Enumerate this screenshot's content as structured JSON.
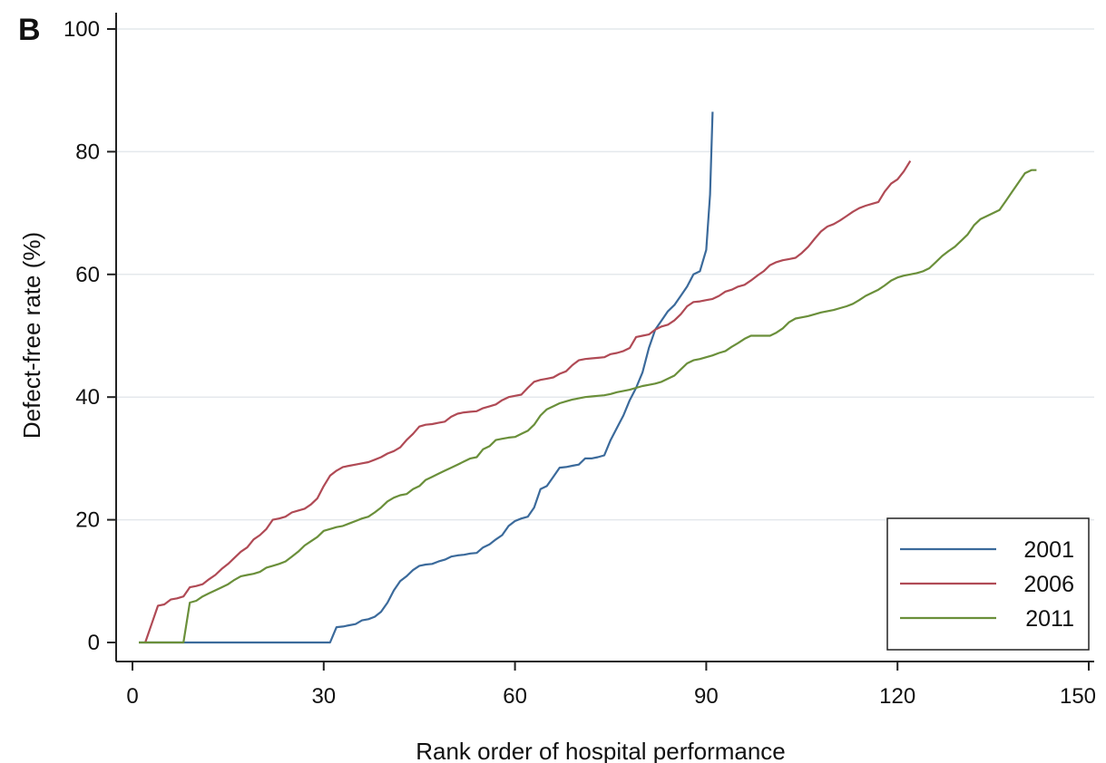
{
  "chart_data": {
    "type": "line",
    "panel_label": "B",
    "xlabel": "Rank order of hospital performance",
    "ylabel": "Defect-free rate (%)",
    "xlim": [
      0,
      150
    ],
    "ylim": [
      0,
      100
    ],
    "x_ticks": [
      0,
      30,
      60,
      90,
      120,
      150
    ],
    "x_tick_labels": [
      "0",
      "30",
      "60",
      "90",
      "120",
      "150"
    ],
    "y_ticks": [
      0,
      20,
      40,
      60,
      80,
      100
    ],
    "y_tick_labels": [
      "0",
      "20",
      "40",
      "60",
      "80",
      "100"
    ],
    "grid": "horizontal",
    "legend_position": "bottom-right",
    "series": [
      {
        "name": "2001",
        "color": "#3b6a9b",
        "points": [
          [
            1,
            0
          ],
          [
            31,
            0
          ],
          [
            32,
            2.5
          ],
          [
            33,
            2.6
          ],
          [
            34,
            2.8
          ],
          [
            35,
            3.0
          ],
          [
            36,
            3.6
          ],
          [
            37,
            3.8
          ],
          [
            38,
            4.2
          ],
          [
            39,
            5.0
          ],
          [
            40,
            6.5
          ],
          [
            41,
            8.5
          ],
          [
            42,
            10
          ],
          [
            43,
            10.8
          ],
          [
            44,
            11.8
          ],
          [
            45,
            12.5
          ],
          [
            46,
            12.7
          ],
          [
            47,
            12.8
          ],
          [
            48,
            13.2
          ],
          [
            49,
            13.5
          ],
          [
            50,
            14
          ],
          [
            51,
            14.2
          ],
          [
            52,
            14.3
          ],
          [
            53,
            14.5
          ],
          [
            54,
            14.6
          ],
          [
            55,
            15.5
          ],
          [
            56,
            16
          ],
          [
            57,
            16.8
          ],
          [
            58,
            17.5
          ],
          [
            59,
            19
          ],
          [
            60,
            19.8
          ],
          [
            61,
            20.2
          ],
          [
            62,
            20.5
          ],
          [
            63,
            22
          ],
          [
            64,
            25
          ],
          [
            65,
            25.5
          ],
          [
            66,
            27
          ],
          [
            67,
            28.5
          ],
          [
            68,
            28.6
          ],
          [
            69,
            28.8
          ],
          [
            70,
            29
          ],
          [
            71,
            30
          ],
          [
            72,
            30
          ],
          [
            73,
            30.2
          ],
          [
            74,
            30.5
          ],
          [
            75,
            33
          ],
          [
            76,
            35
          ],
          [
            77,
            37
          ],
          [
            78,
            39.5
          ],
          [
            79,
            41.5
          ],
          [
            80,
            44
          ],
          [
            81,
            48
          ],
          [
            82,
            51
          ],
          [
            83,
            52.5
          ],
          [
            84,
            54
          ],
          [
            85,
            55
          ],
          [
            86,
            56.5
          ],
          [
            87,
            58
          ],
          [
            88,
            60
          ],
          [
            89,
            60.5
          ],
          [
            90,
            64
          ],
          [
            90.6,
            73
          ],
          [
            91,
            86.5
          ]
        ]
      },
      {
        "name": "2006",
        "color": "#b04a55",
        "points": [
          [
            2,
            0
          ],
          [
            3,
            3
          ],
          [
            4,
            6
          ],
          [
            5,
            6.2
          ],
          [
            6,
            7
          ],
          [
            7,
            7.2
          ],
          [
            8,
            7.5
          ],
          [
            9,
            9
          ],
          [
            10,
            9.2
          ],
          [
            11,
            9.5
          ],
          [
            12,
            10.3
          ],
          [
            13,
            11
          ],
          [
            14,
            12
          ],
          [
            15,
            12.8
          ],
          [
            16,
            13.8
          ],
          [
            17,
            14.8
          ],
          [
            18,
            15.5
          ],
          [
            19,
            16.8
          ],
          [
            20,
            17.5
          ],
          [
            21,
            18.5
          ],
          [
            22,
            20
          ],
          [
            23,
            20.2
          ],
          [
            24,
            20.5
          ],
          [
            25,
            21.2
          ],
          [
            26,
            21.5
          ],
          [
            27,
            21.8
          ],
          [
            28,
            22.5
          ],
          [
            29,
            23.5
          ],
          [
            30,
            25.5
          ],
          [
            31,
            27.2
          ],
          [
            32,
            28
          ],
          [
            33,
            28.6
          ],
          [
            34,
            28.8
          ],
          [
            35,
            29
          ],
          [
            36,
            29.2
          ],
          [
            37,
            29.4
          ],
          [
            38,
            29.8
          ],
          [
            39,
            30.2
          ],
          [
            40,
            30.8
          ],
          [
            41,
            31.2
          ],
          [
            42,
            31.8
          ],
          [
            43,
            33
          ],
          [
            44,
            34
          ],
          [
            45,
            35.2
          ],
          [
            46,
            35.5
          ],
          [
            47,
            35.6
          ],
          [
            48,
            35.8
          ],
          [
            49,
            36
          ],
          [
            50,
            36.8
          ],
          [
            51,
            37.3
          ],
          [
            52,
            37.5
          ],
          [
            53,
            37.6
          ],
          [
            54,
            37.7
          ],
          [
            55,
            38.2
          ],
          [
            56,
            38.5
          ],
          [
            57,
            38.8
          ],
          [
            58,
            39.5
          ],
          [
            59,
            40
          ],
          [
            60,
            40.2
          ],
          [
            61,
            40.4
          ],
          [
            62,
            41.5
          ],
          [
            63,
            42.5
          ],
          [
            64,
            42.8
          ],
          [
            65,
            43
          ],
          [
            66,
            43.2
          ],
          [
            67,
            43.8
          ],
          [
            68,
            44.2
          ],
          [
            69,
            45.2
          ],
          [
            70,
            46
          ],
          [
            71,
            46.2
          ],
          [
            72,
            46.3
          ],
          [
            73,
            46.4
          ],
          [
            74,
            46.5
          ],
          [
            75,
            47
          ],
          [
            76,
            47.2
          ],
          [
            77,
            47.5
          ],
          [
            78,
            48
          ],
          [
            79,
            49.8
          ],
          [
            80,
            50
          ],
          [
            81,
            50.2
          ],
          [
            82,
            51
          ],
          [
            83,
            51.5
          ],
          [
            84,
            51.8
          ],
          [
            85,
            52.5
          ],
          [
            86,
            53.5
          ],
          [
            87,
            54.8
          ],
          [
            88,
            55.5
          ],
          [
            89,
            55.6
          ],
          [
            90,
            55.8
          ],
          [
            91,
            56
          ],
          [
            92,
            56.5
          ],
          [
            93,
            57.2
          ],
          [
            94,
            57.5
          ],
          [
            95,
            58
          ],
          [
            96,
            58.3
          ],
          [
            97,
            59
          ],
          [
            98,
            59.8
          ],
          [
            99,
            60.5
          ],
          [
            100,
            61.5
          ],
          [
            101,
            62
          ],
          [
            102,
            62.3
          ],
          [
            103,
            62.5
          ],
          [
            104,
            62.7
          ],
          [
            105,
            63.5
          ],
          [
            106,
            64.5
          ],
          [
            107,
            65.8
          ],
          [
            108,
            67
          ],
          [
            109,
            67.8
          ],
          [
            110,
            68.2
          ],
          [
            111,
            68.8
          ],
          [
            112,
            69.5
          ],
          [
            113,
            70.2
          ],
          [
            114,
            70.8
          ],
          [
            115,
            71.2
          ],
          [
            116,
            71.5
          ],
          [
            117,
            71.8
          ],
          [
            118,
            73.5
          ],
          [
            119,
            74.8
          ],
          [
            120,
            75.5
          ],
          [
            121,
            76.8
          ],
          [
            122,
            78.5
          ]
        ]
      },
      {
        "name": "2011",
        "color": "#6a8f3a",
        "points": [
          [
            1,
            0
          ],
          [
            8,
            0
          ],
          [
            9,
            6.5
          ],
          [
            10,
            6.8
          ],
          [
            11,
            7.5
          ],
          [
            12,
            8
          ],
          [
            13,
            8.5
          ],
          [
            14,
            9
          ],
          [
            15,
            9.5
          ],
          [
            16,
            10.2
          ],
          [
            17,
            10.8
          ],
          [
            18,
            11
          ],
          [
            19,
            11.2
          ],
          [
            20,
            11.5
          ],
          [
            21,
            12.2
          ],
          [
            22,
            12.5
          ],
          [
            23,
            12.8
          ],
          [
            24,
            13.2
          ],
          [
            25,
            14
          ],
          [
            26,
            14.8
          ],
          [
            27,
            15.8
          ],
          [
            28,
            16.5
          ],
          [
            29,
            17.2
          ],
          [
            30,
            18.2
          ],
          [
            31,
            18.5
          ],
          [
            32,
            18.8
          ],
          [
            33,
            19
          ],
          [
            34,
            19.4
          ],
          [
            35,
            19.8
          ],
          [
            36,
            20.2
          ],
          [
            37,
            20.5
          ],
          [
            38,
            21.2
          ],
          [
            39,
            22
          ],
          [
            40,
            23
          ],
          [
            41,
            23.6
          ],
          [
            42,
            24
          ],
          [
            43,
            24.2
          ],
          [
            44,
            25
          ],
          [
            45,
            25.5
          ],
          [
            46,
            26.5
          ],
          [
            47,
            27
          ],
          [
            48,
            27.5
          ],
          [
            49,
            28
          ],
          [
            50,
            28.5
          ],
          [
            51,
            29
          ],
          [
            52,
            29.5
          ],
          [
            53,
            30
          ],
          [
            54,
            30.2
          ],
          [
            55,
            31.5
          ],
          [
            56,
            32
          ],
          [
            57,
            33
          ],
          [
            58,
            33.2
          ],
          [
            59,
            33.4
          ],
          [
            60,
            33.5
          ],
          [
            61,
            34
          ],
          [
            62,
            34.5
          ],
          [
            63,
            35.5
          ],
          [
            64,
            37
          ],
          [
            65,
            38
          ],
          [
            66,
            38.5
          ],
          [
            67,
            39
          ],
          [
            68,
            39.3
          ],
          [
            69,
            39.6
          ],
          [
            70,
            39.8
          ],
          [
            71,
            40
          ],
          [
            72,
            40.1
          ],
          [
            73,
            40.2
          ],
          [
            74,
            40.3
          ],
          [
            75,
            40.5
          ],
          [
            76,
            40.8
          ],
          [
            77,
            41
          ],
          [
            78,
            41.2
          ],
          [
            79,
            41.5
          ],
          [
            80,
            41.8
          ],
          [
            81,
            42
          ],
          [
            82,
            42.2
          ],
          [
            83,
            42.5
          ],
          [
            84,
            43
          ],
          [
            85,
            43.5
          ],
          [
            86,
            44.5
          ],
          [
            87,
            45.5
          ],
          [
            88,
            46
          ],
          [
            89,
            46.2
          ],
          [
            90,
            46.5
          ],
          [
            91,
            46.8
          ],
          [
            92,
            47.2
          ],
          [
            93,
            47.5
          ],
          [
            94,
            48.2
          ],
          [
            95,
            48.8
          ],
          [
            96,
            49.5
          ],
          [
            97,
            50
          ],
          [
            98,
            50
          ],
          [
            99,
            50
          ],
          [
            100,
            50
          ],
          [
            101,
            50.5
          ],
          [
            102,
            51.2
          ],
          [
            103,
            52.2
          ],
          [
            104,
            52.8
          ],
          [
            105,
            53
          ],
          [
            106,
            53.2
          ],
          [
            107,
            53.5
          ],
          [
            108,
            53.8
          ],
          [
            109,
            54
          ],
          [
            110,
            54.2
          ],
          [
            111,
            54.5
          ],
          [
            112,
            54.8
          ],
          [
            113,
            55.2
          ],
          [
            114,
            55.8
          ],
          [
            115,
            56.5
          ],
          [
            116,
            57
          ],
          [
            117,
            57.5
          ],
          [
            118,
            58.2
          ],
          [
            119,
            59
          ],
          [
            120,
            59.5
          ],
          [
            121,
            59.8
          ],
          [
            122,
            60
          ],
          [
            123,
            60.2
          ],
          [
            124,
            60.5
          ],
          [
            125,
            61
          ],
          [
            126,
            62
          ],
          [
            127,
            63
          ],
          [
            128,
            63.8
          ],
          [
            129,
            64.5
          ],
          [
            130,
            65.5
          ],
          [
            131,
            66.5
          ],
          [
            132,
            68
          ],
          [
            133,
            69
          ],
          [
            134,
            69.5
          ],
          [
            135,
            70
          ],
          [
            136,
            70.5
          ],
          [
            137,
            72
          ],
          [
            138,
            73.5
          ],
          [
            139,
            75
          ],
          [
            140,
            76.5
          ],
          [
            141,
            77
          ],
          [
            141.8,
            77
          ]
        ]
      }
    ]
  }
}
